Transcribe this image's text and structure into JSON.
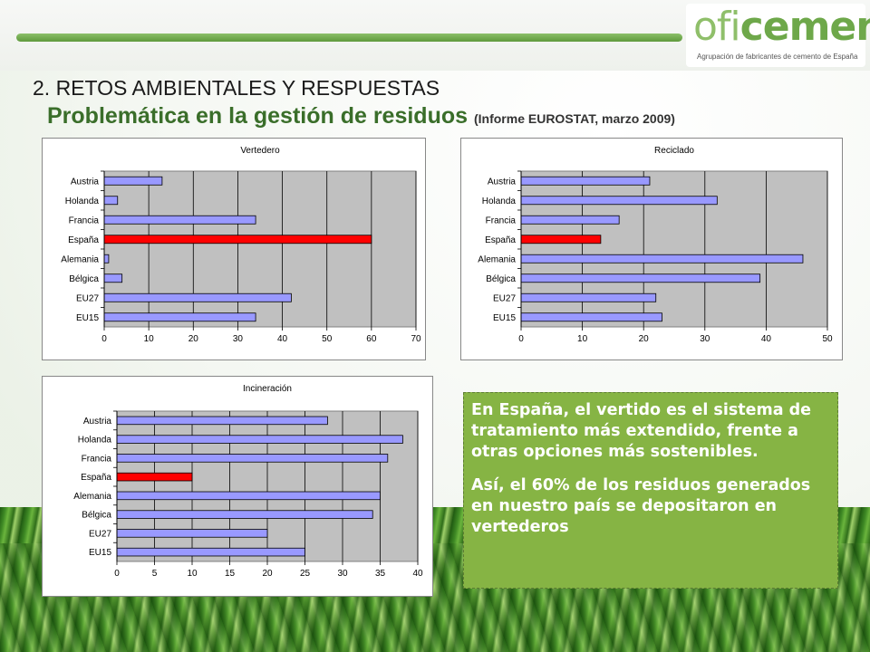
{
  "header": {
    "section_title": "2. RETOS AMBIENTALES Y RESPUESTAS",
    "subtitle": "Problemática en la gestión de residuos",
    "subtitle_note": "(Informe EUROSTAT, marzo 2009)"
  },
  "logo": {
    "text_a": "ofi",
    "text_b": "cemen",
    "tagline": "Agrupación de fabricantes de cemento de España"
  },
  "colors": {
    "bar_default": "#9999ff",
    "bar_highlight": "#ff0000",
    "plot_bg": "#c0c0c0",
    "textbox_bg": "#86b444"
  },
  "chart_data": [
    {
      "type": "bar",
      "orientation": "horizontal",
      "title": "Vertedero",
      "categories": [
        "Austria",
        "Holanda",
        "Francia",
        "España",
        "Alemania",
        "Bélgica",
        "EU27",
        "EU15"
      ],
      "values": [
        13,
        3,
        34,
        60,
        1,
        4,
        42,
        34
      ],
      "highlight": "España",
      "xlim": [
        0,
        70
      ],
      "xticks": [
        0,
        10,
        20,
        30,
        40,
        50,
        60,
        70
      ],
      "grid": true
    },
    {
      "type": "bar",
      "orientation": "horizontal",
      "title": "Reciclado",
      "categories": [
        "Austria",
        "Holanda",
        "Francia",
        "España",
        "Alemania",
        "Bélgica",
        "EU27",
        "EU15"
      ],
      "values": [
        21,
        32,
        16,
        13,
        46,
        39,
        22,
        23
      ],
      "highlight": "España",
      "xlim": [
        0,
        50
      ],
      "xticks": [
        0,
        10,
        20,
        30,
        40,
        50
      ],
      "grid": true
    },
    {
      "type": "bar",
      "orientation": "horizontal",
      "title": "Incineración",
      "categories": [
        "Austria",
        "Holanda",
        "Francia",
        "España",
        "Alemania",
        "Bélgica",
        "EU27",
        "EU15"
      ],
      "values": [
        28,
        38,
        36,
        10,
        35,
        34,
        20,
        25
      ],
      "highlight": "España",
      "xlim": [
        0,
        40
      ],
      "xticks": [
        0,
        5,
        10,
        15,
        20,
        25,
        30,
        35,
        40
      ],
      "grid": true
    }
  ],
  "textbox": {
    "para1": "En España, el vertido es el sistema de tratamiento más extendido, frente a otras opciones más sostenibles.",
    "para2": "Así, el 60% de los residuos generados en nuestro país se depositaron en vertederos"
  }
}
